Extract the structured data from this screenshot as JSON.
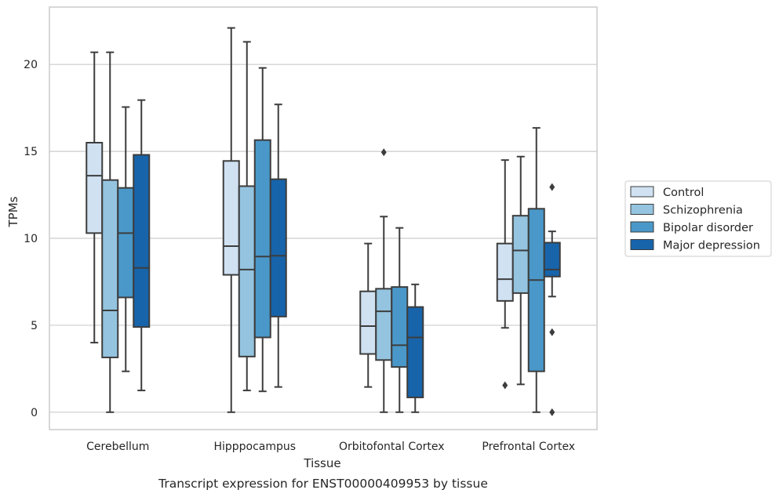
{
  "caption": "Transcript expression for ENST00000409953 by tissue",
  "chart_data": {
    "type": "boxplot",
    "xlabel": "Tissue",
    "ylabel": "TPMs",
    "ylim": [
      -1,
      23.3
    ],
    "yticks": [
      0,
      5,
      10,
      15,
      20
    ],
    "grid": "horizontal",
    "legend_position": "right",
    "categories": [
      "Cerebellum",
      "Hipppocampus",
      "Orbitofontal Cortex",
      "Prefrontal Cortex"
    ],
    "series": [
      {
        "name": "Control",
        "color": "#d0e1f2",
        "boxes": [
          {
            "whisker_low": 4.0,
            "q1": 10.3,
            "median": 13.6,
            "q3": 15.5,
            "whisker_high": 20.7,
            "outliers": []
          },
          {
            "whisker_low": 0.0,
            "q1": 7.9,
            "median": 9.55,
            "q3": 14.45,
            "whisker_high": 22.1,
            "outliers": []
          },
          {
            "whisker_low": 1.45,
            "q1": 3.35,
            "median": 4.95,
            "q3": 6.95,
            "whisker_high": 9.7,
            "outliers": []
          },
          {
            "whisker_low": 4.85,
            "q1": 6.4,
            "median": 7.65,
            "q3": 9.7,
            "whisker_high": 14.5,
            "outliers": [
              1.55
            ]
          }
        ]
      },
      {
        "name": "Schizophrenia",
        "color": "#94c4df",
        "boxes": [
          {
            "whisker_low": 0.0,
            "q1": 3.15,
            "median": 5.85,
            "q3": 13.35,
            "whisker_high": 20.7,
            "outliers": []
          },
          {
            "whisker_low": 1.25,
            "q1": 3.2,
            "median": 8.2,
            "q3": 13.0,
            "whisker_high": 21.3,
            "outliers": []
          },
          {
            "whisker_low": 0.0,
            "q1": 3.0,
            "median": 5.8,
            "q3": 7.1,
            "whisker_high": 11.25,
            "outliers": [
              14.95
            ]
          },
          {
            "whisker_low": 1.6,
            "q1": 6.85,
            "median": 9.3,
            "q3": 11.3,
            "whisker_high": 14.7,
            "outliers": []
          }
        ]
      },
      {
        "name": "Bipolar disorder",
        "color": "#4a98c9",
        "boxes": [
          {
            "whisker_low": 2.35,
            "q1": 6.6,
            "median": 10.3,
            "q3": 12.9,
            "whisker_high": 17.55,
            "outliers": []
          },
          {
            "whisker_low": 1.2,
            "q1": 4.3,
            "median": 8.95,
            "q3": 15.65,
            "whisker_high": 19.8,
            "outliers": []
          },
          {
            "whisker_low": 0.0,
            "q1": 2.6,
            "median": 3.85,
            "q3": 7.2,
            "whisker_high": 10.6,
            "outliers": []
          },
          {
            "whisker_low": 0.0,
            "q1": 2.35,
            "median": 7.6,
            "q3": 11.7,
            "whisker_high": 16.35,
            "outliers": []
          }
        ]
      },
      {
        "name": "Major depression",
        "color": "#1764ab",
        "boxes": [
          {
            "whisker_low": 1.25,
            "q1": 4.9,
            "median": 8.3,
            "q3": 14.8,
            "whisker_high": 17.95,
            "outliers": []
          },
          {
            "whisker_low": 1.45,
            "q1": 5.5,
            "median": 9.0,
            "q3": 13.4,
            "whisker_high": 17.7,
            "outliers": []
          },
          {
            "whisker_low": 0.0,
            "q1": 0.85,
            "median": 4.3,
            "q3": 6.05,
            "whisker_high": 7.35,
            "outliers": []
          },
          {
            "whisker_low": 6.65,
            "q1": 7.8,
            "median": 8.2,
            "q3": 9.75,
            "whisker_high": 10.4,
            "outliers": [
              12.95,
              4.6,
              0.0
            ]
          }
        ]
      }
    ]
  }
}
